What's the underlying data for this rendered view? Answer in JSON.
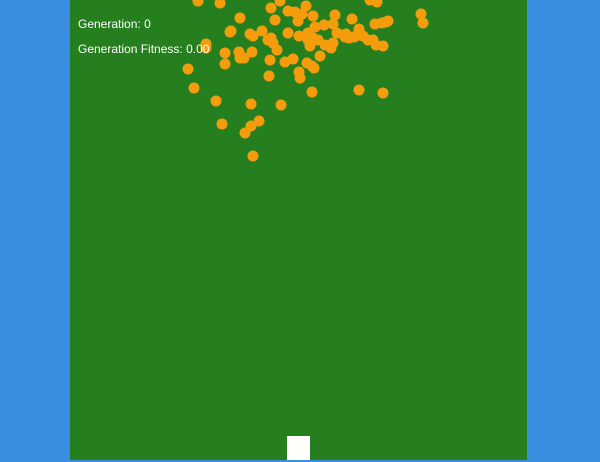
{
  "hud": {
    "generation_label": "Generation:",
    "generation_value": "0",
    "fitness_label": "Generation Fitness:",
    "fitness_value": "0.00"
  },
  "colors": {
    "background": "#3a8ee0",
    "field": "#267f1e",
    "dot": "#f59c0c",
    "goal": "#ffffff",
    "text": "#ffffff"
  }
}
